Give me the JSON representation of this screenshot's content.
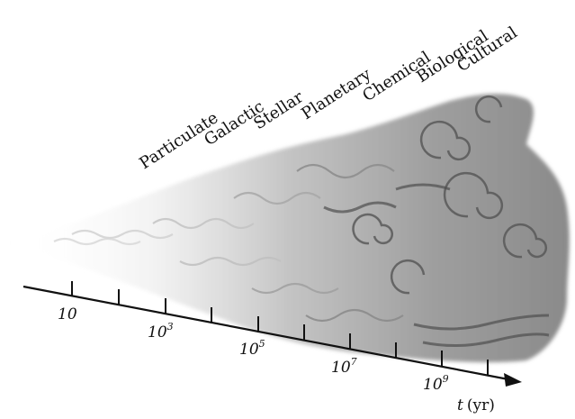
{
  "eras": [
    "Particulate",
    "Galactic",
    "Stellar",
    "Planetary",
    "Chemical",
    "Biological",
    "Cultural"
  ],
  "axis": {
    "ticks": [
      {
        "base": "10",
        "exp": ""
      },
      {
        "base": "10",
        "exp": "3"
      },
      {
        "base": "10",
        "exp": "5"
      },
      {
        "base": "10",
        "exp": "7"
      },
      {
        "base": "10",
        "exp": "9"
      }
    ],
    "label_var": "t",
    "label_unit": "(yr)"
  },
  "colors": {
    "cloud_light": "#e6e6e6",
    "cloud_mid": "#a9a9a9",
    "cloud_dark": "#6f6f6f",
    "ink": "#111111"
  }
}
